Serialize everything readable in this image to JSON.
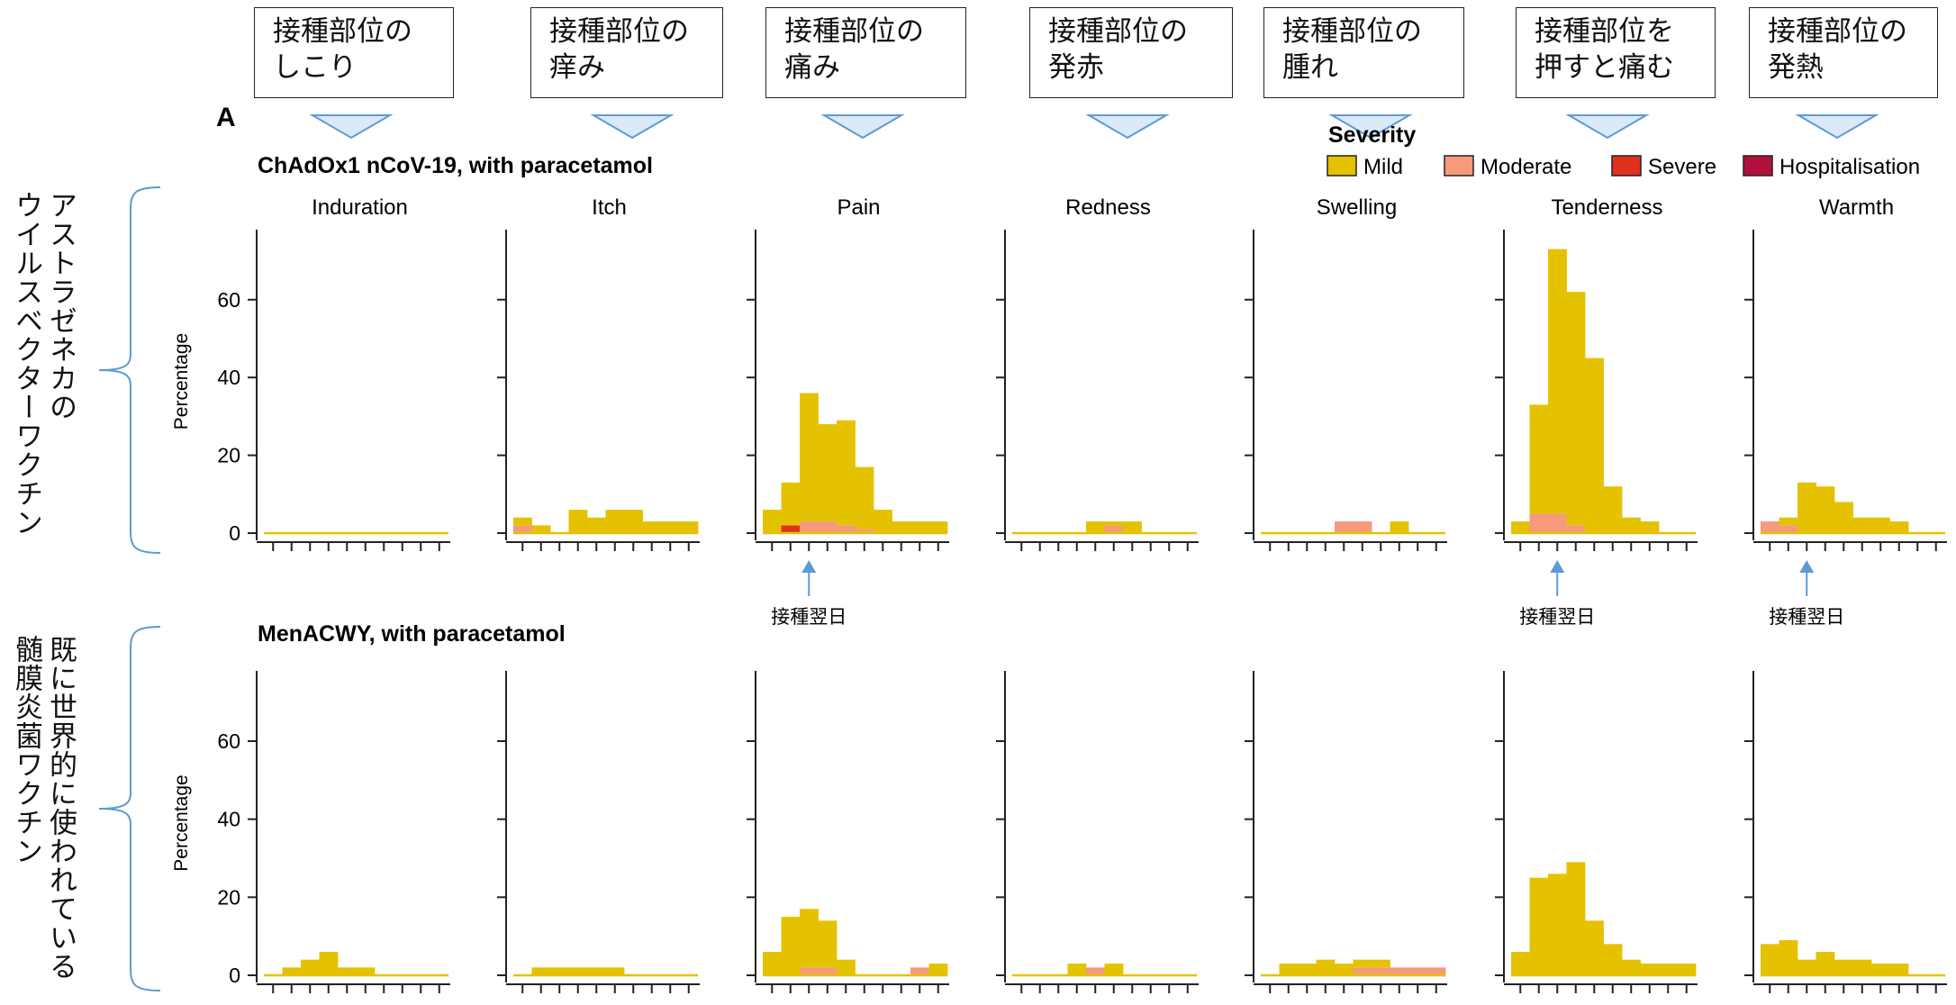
{
  "panel_letter": "A",
  "legend": {
    "title": "Severity",
    "items": [
      {
        "label": "Mild",
        "color": "#e5c200"
      },
      {
        "label": "Moderate",
        "color": "#f59a7c"
      },
      {
        "label": "Severe",
        "color": "#e0301e"
      },
      {
        "label": "Hospitalisation",
        "color": "#b0103a"
      }
    ]
  },
  "callouts": [
    {
      "line1": "接種部位の",
      "line2": "しこり"
    },
    {
      "line1": "接種部位の",
      "line2": "痒み"
    },
    {
      "line1": "接種部位の",
      "line2": "痛み"
    },
    {
      "line1": "接種部位の",
      "line2": "発赤"
    },
    {
      "line1": "接種部位の",
      "line2": "腫れ"
    },
    {
      "line1": "接種部位を",
      "line2": "押すと痛む"
    },
    {
      "line1": "接種部位の",
      "line2": "発熱"
    }
  ],
  "row_notes": [
    {
      "line1": "アストラゼネカの",
      "line2": "ウイルスベクターワクチン"
    },
    {
      "line1": "既に世界的に使われている",
      "line2": "髄膜炎菌ワクチン"
    }
  ],
  "arrow_label": "接種翌日",
  "chart_data": {
    "type": "bar",
    "ylabel": "Percentage",
    "yticks": [
      0,
      20,
      40,
      60
    ],
    "ylim": [
      0,
      78
    ],
    "days": 10,
    "categories": [
      "Induration",
      "Itch",
      "Pain",
      "Redness",
      "Swelling",
      "Tenderness",
      "Warmth"
    ],
    "rows": [
      {
        "title": "ChAdOx1 nCoV-19, with paracetamol",
        "panels": [
          {
            "name": "Induration",
            "mild": [
              0,
              0,
              0,
              0,
              0,
              0,
              0,
              0,
              0,
              0
            ],
            "moderate": [
              0,
              0,
              0,
              0,
              0,
              0,
              0,
              0,
              0,
              0
            ],
            "severe": [
              0,
              0,
              0,
              0,
              0,
              0,
              0,
              0,
              0,
              0
            ]
          },
          {
            "name": "Itch",
            "mild": [
              2,
              2,
              0,
              6,
              4,
              6,
              6,
              3,
              3,
              3
            ],
            "moderate": [
              2,
              0,
              0,
              0,
              0,
              0,
              0,
              0,
              0,
              0
            ],
            "severe": [
              0,
              0,
              0,
              0,
              0,
              0,
              0,
              0,
              0,
              0
            ]
          },
          {
            "name": "Pain",
            "mild": [
              6,
              11,
              33,
              25,
              27,
              16,
              6,
              3,
              3,
              3
            ],
            "moderate": [
              0,
              0,
              3,
              3,
              2,
              1,
              0,
              0,
              0,
              0
            ],
            "severe": [
              0,
              2,
              0,
              0,
              0,
              0,
              0,
              0,
              0,
              0
            ]
          },
          {
            "name": "Redness",
            "mild": [
              0,
              0,
              0,
              0,
              3,
              1,
              3,
              0,
              0,
              0
            ],
            "moderate": [
              0,
              0,
              0,
              0,
              0,
              2,
              0,
              0,
              0,
              0
            ],
            "severe": [
              0,
              0,
              0,
              0,
              0,
              0,
              0,
              0,
              0,
              0
            ]
          },
          {
            "name": "Swelling",
            "mild": [
              0,
              0,
              0,
              0,
              0,
              0,
              0,
              3,
              0,
              0
            ],
            "moderate": [
              0,
              0,
              0,
              0,
              3,
              3,
              0,
              0,
              0,
              0
            ],
            "severe": [
              0,
              0,
              0,
              0,
              0,
              0,
              0,
              0,
              0,
              0
            ]
          },
          {
            "name": "Tenderness",
            "mild": [
              3,
              28,
              68,
              60,
              45,
              12,
              4,
              3,
              0,
              0
            ],
            "moderate": [
              0,
              5,
              5,
              2,
              0,
              0,
              0,
              0,
              0,
              0
            ],
            "severe": [
              0,
              0,
              0,
              0,
              0,
              0,
              0,
              0,
              0,
              0
            ]
          },
          {
            "name": "Warmth",
            "mild": [
              0,
              2,
              13,
              12,
              8,
              4,
              4,
              3,
              0,
              0
            ],
            "moderate": [
              3,
              2,
              0,
              0,
              0,
              0,
              0,
              0,
              0,
              0
            ],
            "severe": [
              0,
              0,
              0,
              0,
              0,
              0,
              0,
              0,
              0,
              0
            ]
          }
        ]
      },
      {
        "title": "MenACWY, with paracetamol",
        "panels": [
          {
            "name": "Induration",
            "mild": [
              0,
              2,
              4,
              6,
              2,
              2,
              0,
              0,
              0,
              0
            ],
            "moderate": [
              0,
              0,
              0,
              0,
              0,
              0,
              0,
              0,
              0,
              0
            ],
            "severe": [
              0,
              0,
              0,
              0,
              0,
              0,
              0,
              0,
              0,
              0
            ]
          },
          {
            "name": "Itch",
            "mild": [
              0,
              2,
              2,
              2,
              2,
              2,
              0,
              0,
              0,
              0
            ],
            "moderate": [
              0,
              0,
              0,
              0,
              0,
              0,
              0,
              0,
              0,
              0
            ],
            "severe": [
              0,
              0,
              0,
              0,
              0,
              0,
              0,
              0,
              0,
              0
            ]
          },
          {
            "name": "Pain",
            "mild": [
              6,
              15,
              15,
              12,
              4,
              0,
              0,
              0,
              0,
              3
            ],
            "moderate": [
              0,
              0,
              2,
              2,
              0,
              0,
              0,
              0,
              2,
              0
            ],
            "severe": [
              0,
              0,
              0,
              0,
              0,
              0,
              0,
              0,
              0,
              0
            ]
          },
          {
            "name": "Redness",
            "mild": [
              0,
              0,
              0,
              3,
              0,
              3,
              0,
              0,
              0,
              0
            ],
            "moderate": [
              0,
              0,
              0,
              0,
              2,
              0,
              0,
              0,
              0,
              0
            ],
            "severe": [
              0,
              0,
              0,
              0,
              0,
              0,
              0,
              0,
              0,
              0
            ]
          },
          {
            "name": "Swelling",
            "mild": [
              0,
              3,
              3,
              4,
              3,
              2,
              2,
              0,
              0,
              0
            ],
            "moderate": [
              0,
              0,
              0,
              0,
              0,
              2,
              2,
              2,
              2,
              2
            ],
            "severe": [
              0,
              0,
              0,
              0,
              0,
              0,
              0,
              0,
              0,
              0
            ]
          },
          {
            "name": "Tenderness",
            "mild": [
              6,
              25,
              26,
              29,
              14,
              8,
              4,
              3,
              3,
              3
            ],
            "moderate": [
              0,
              0,
              0,
              0,
              0,
              0,
              0,
              0,
              0,
              0
            ],
            "severe": [
              0,
              0,
              0,
              0,
              0,
              0,
              0,
              0,
              0,
              0
            ]
          },
          {
            "name": "Warmth",
            "mild": [
              8,
              9,
              4,
              6,
              4,
              4,
              3,
              3,
              0,
              0
            ],
            "moderate": [
              0,
              0,
              0,
              0,
              0,
              0,
              0,
              0,
              0,
              0
            ],
            "severe": [
              0,
              0,
              0,
              0,
              0,
              0,
              0,
              0,
              0,
              0
            ]
          }
        ]
      }
    ],
    "arrows": [
      {
        "row": 0,
        "panel": 2,
        "day": 2
      },
      {
        "row": 0,
        "panel": 5,
        "day": 2
      },
      {
        "row": 0,
        "panel": 6,
        "day": 2
      }
    ]
  }
}
